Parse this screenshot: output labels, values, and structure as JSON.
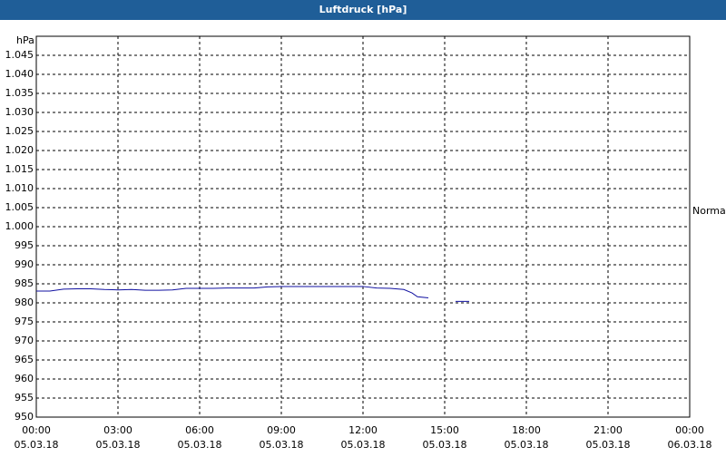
{
  "chart_data": {
    "type": "line",
    "title": "Luftdruck [hPa]",
    "y_unit": "hPa",
    "annotation": {
      "text": "Normal",
      "value": 1004
    },
    "x": [
      0,
      0.5,
      1,
      1.5,
      2,
      2.5,
      3,
      3.5,
      4,
      4.5,
      5,
      5.5,
      6,
      6.5,
      7,
      7.5,
      8,
      8.5,
      9,
      9.5,
      10,
      10.5,
      11,
      11.5,
      12,
      12.5,
      13,
      13.5,
      13.8,
      14,
      14.4,
      15,
      15.4,
      15.9
    ],
    "series": [
      {
        "color": "#1010a0",
        "values": [
          983.1,
          983.1,
          983.6,
          983.7,
          983.7,
          983.5,
          983.4,
          983.5,
          983.3,
          983.3,
          983.4,
          983.8,
          983.8,
          983.8,
          983.9,
          983.9,
          983.9,
          984.2,
          984.3,
          984.3,
          984.3,
          984.3,
          984.3,
          984.3,
          984.3,
          983.9,
          983.8,
          983.5,
          982.6,
          981.6,
          981.3,
          null,
          980.4,
          980.4
        ]
      }
    ],
    "xlim": [
      0,
      24
    ],
    "xticks": [
      {
        "value": 0,
        "label": "00:00",
        "date": "05.03.18"
      },
      {
        "value": 3,
        "label": "03:00",
        "date": "05.03.18"
      },
      {
        "value": 6,
        "label": "06:00",
        "date": "05.03.18"
      },
      {
        "value": 9,
        "label": "09:00",
        "date": "05.03.18"
      },
      {
        "value": 12,
        "label": "12:00",
        "date": "05.03.18"
      },
      {
        "value": 15,
        "label": "15:00",
        "date": "05.03.18"
      },
      {
        "value": 18,
        "label": "18:00",
        "date": "05.03.18"
      },
      {
        "value": 21,
        "label": "21:00",
        "date": "05.03.18"
      },
      {
        "value": 24,
        "label": "00:00",
        "date": "06.03.18"
      }
    ],
    "ylim": [
      950,
      1050
    ],
    "yticks": [
      950,
      955,
      960,
      965,
      970,
      975,
      980,
      985,
      990,
      995,
      {
        "value": 1000,
        "label": "1.000"
      },
      {
        "value": 1005,
        "label": "1.005"
      },
      {
        "value": 1010,
        "label": "1.010"
      },
      {
        "value": 1015,
        "label": "1.015"
      },
      {
        "value": 1020,
        "label": "1.020"
      },
      {
        "value": 1025,
        "label": "1.025"
      },
      {
        "value": 1030,
        "label": "1.030"
      },
      {
        "value": 1035,
        "label": "1.035"
      },
      {
        "value": 1040,
        "label": "1.040"
      },
      {
        "value": 1045,
        "label": "1.045"
      }
    ],
    "grid": true
  }
}
